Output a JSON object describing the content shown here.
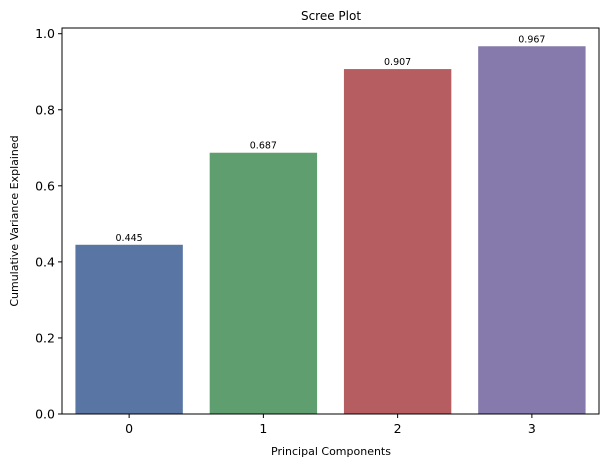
{
  "chart_data": {
    "type": "bar",
    "title": "Scree Plot",
    "xlabel": "Principal Components",
    "ylabel": "Cumulative Variance Explained",
    "categories": [
      "0",
      "1",
      "2",
      "3"
    ],
    "values": [
      0.445,
      0.687,
      0.907,
      0.967
    ],
    "data_labels": [
      "0.445",
      "0.687",
      "0.907",
      "0.967"
    ],
    "colors": [
      "#5975a4",
      "#5f9e6e",
      "#b55d60",
      "#857aab"
    ],
    "ylim": [
      0,
      1.015
    ],
    "yticks": [
      0.0,
      0.2,
      0.4,
      0.6,
      0.8,
      1.0
    ],
    "ytick_labels": [
      "0.0",
      "0.2",
      "0.4",
      "0.6",
      "0.8",
      "1.0"
    ],
    "grid": false,
    "legend": "none"
  }
}
